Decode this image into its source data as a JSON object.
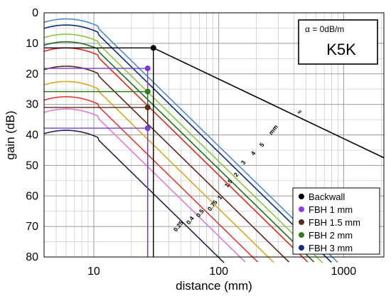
{
  "chart_data": {
    "type": "line",
    "title": "",
    "xlabel": "distance (mm)",
    "ylabel": "gain (dB)",
    "xscale": "log",
    "xlim": [
      4,
      2100
    ],
    "ylim": [
      0,
      80
    ],
    "y_inverted": true,
    "grid": true,
    "x_ticks": [
      {
        "value": 10,
        "label": "10"
      },
      {
        "value": 100,
        "label": "100"
      },
      {
        "value": 1000,
        "label": "1000"
      }
    ],
    "y_ticks": [
      {
        "value": 0,
        "label": "0"
      },
      {
        "value": 10,
        "label": "10"
      },
      {
        "value": 20,
        "label": "20"
      },
      {
        "value": 30,
        "label": "30"
      },
      {
        "value": 40,
        "label": "40"
      },
      {
        "value": 50,
        "label": "50"
      },
      {
        "value": 60,
        "label": "60"
      },
      {
        "value": 70,
        "label": "70"
      },
      {
        "value": 80,
        "label": "80"
      }
    ],
    "info_box": {
      "alpha": "α = 0dB/m",
      "probe": "K5K"
    },
    "backwall_line": {
      "label": "∞",
      "color": "#000000",
      "points": [
        [
          30,
          11.5
        ],
        [
          2100,
          47.5
        ]
      ]
    },
    "series": [
      {
        "label": "0.25",
        "color": "#26224a",
        "peak_x": 6,
        "peak_y": 38.5
      },
      {
        "label": "0.4",
        "color": "#e07ad0",
        "peak_x": 6,
        "peak_y": 31.5
      },
      {
        "label": "0.5",
        "color": "#e03c30",
        "peak_x": 6,
        "peak_y": 27.5
      },
      {
        "label": "0.75",
        "color": "#d9a820",
        "peak_x": 6,
        "peak_y": 22.5
      },
      {
        "label": "1",
        "color": "#5a2a1a",
        "peak_x": 6,
        "peak_y": 17.5
      },
      {
        "label": "1.5",
        "color": "#e0281c",
        "peak_x": 6,
        "peak_y": 11.5
      },
      {
        "label": "2",
        "color": "#1f6e1f",
        "peak_x": 6,
        "peak_y": 9.5
      },
      {
        "label": "3",
        "color": "#86c83c",
        "peak_x": 6,
        "peak_y": 7
      },
      {
        "label": "4",
        "color": "#0f2a7a",
        "peak_x": 6,
        "peak_y": 4
      },
      {
        "label": "5",
        "color": "#4a8ad0",
        "peak_x": 6,
        "peak_y": 2
      },
      {
        "label": "mm",
        "color": "#4a8ad0",
        "peak_x": null,
        "peak_y": null
      }
    ],
    "reference_points": [
      {
        "x": 30,
        "y": 11.5,
        "color": "#000000"
      },
      {
        "x": 27,
        "y": 18.2,
        "color": "#7a3cd8"
      },
      {
        "x": 27,
        "y": 25.8,
        "color": "#2e7d1e"
      },
      {
        "x": 27,
        "y": 31.0,
        "color": "#5a2a1a"
      },
      {
        "x": 27,
        "y": 37.8,
        "color": "#7a3cd8"
      }
    ],
    "legend": {
      "position": "bottom-right",
      "entries": [
        {
          "label": "Backwall",
          "color": "#000000"
        },
        {
          "label": "FBH 1 mm",
          "color": "#8a3de0"
        },
        {
          "label": "FBH 1.5 mm",
          "color": "#5a2a1a"
        },
        {
          "label": "FBH 2 mm",
          "color": "#2e7d1e"
        },
        {
          "label": "FBH 3 mm",
          "color": "#1a2a8a"
        }
      ]
    }
  }
}
